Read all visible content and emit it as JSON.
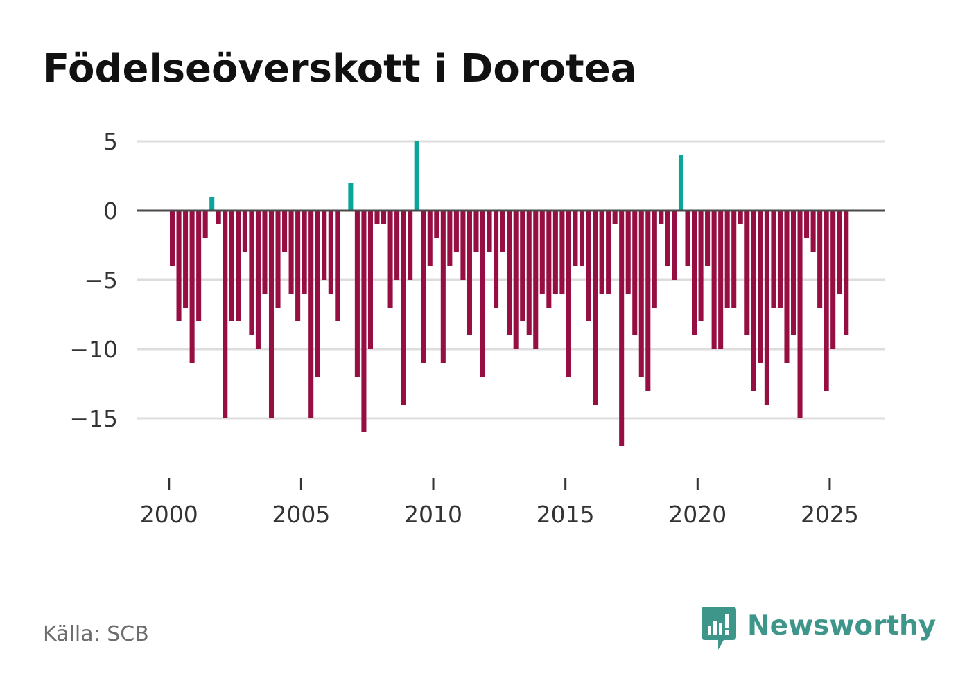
{
  "title": "Födelseöverskott i Dorotea",
  "source": "Källa: SCB",
  "brand": {
    "name": "Newsworthy",
    "icon": "newsworthy-logo-icon",
    "color": "#3e968b"
  },
  "chart_data": {
    "type": "bar",
    "title": "Födelseöverskott i Dorotea",
    "xlabel": "",
    "ylabel": "",
    "frequency": "quarterly",
    "x_start": 2000,
    "ylim": [
      -19.5,
      5
    ],
    "xlim": [
      1998.8,
      2027.1
    ],
    "y_ticks": [
      5,
      0,
      -5,
      -10,
      -15
    ],
    "y_tick_labels": [
      "5",
      "0",
      "−5",
      "−10",
      "−15"
    ],
    "x_ticks": [
      2000,
      2005,
      2010,
      2015,
      2020,
      2025
    ],
    "x_tick_labels": [
      "2000",
      "2005",
      "2010",
      "2015",
      "2020",
      "2025"
    ],
    "grid": true,
    "colors": {
      "positive": "#0ca59c",
      "negative": "#960e42",
      "grid": "#dddddd",
      "zero_line": "#4a4a4a",
      "tick": "#333333"
    },
    "values": [
      -4,
      -8,
      -7,
      -11,
      -8,
      -2,
      1,
      -1,
      -15,
      -8,
      -8,
      -3,
      -9,
      -10,
      -6,
      -15,
      -7,
      -3,
      -6,
      -8,
      -6,
      -15,
      -12,
      -5,
      -6,
      -8,
      0,
      2,
      -12,
      -16,
      -10,
      -1,
      -1,
      -7,
      -5,
      -14,
      -5,
      5,
      -11,
      -4,
      -2,
      -11,
      -4,
      -3,
      -5,
      -9,
      -3,
      -12,
      -3,
      -7,
      -3,
      -9,
      -10,
      -8,
      -9,
      -10,
      -6,
      -7,
      -6,
      -6,
      -12,
      -4,
      -4,
      -8,
      -14,
      -6,
      -6,
      -1,
      -17,
      -6,
      -9,
      -12,
      -13,
      -7,
      -1,
      -4,
      -5,
      4,
      -4,
      -9,
      -8,
      -4,
      -10,
      -10,
      -7,
      -7,
      -1,
      -9,
      -13,
      -11,
      -14,
      -7,
      -7,
      -11,
      -9,
      -15,
      -2,
      -3,
      -7,
      -13,
      -10,
      -6,
      -9
    ]
  }
}
